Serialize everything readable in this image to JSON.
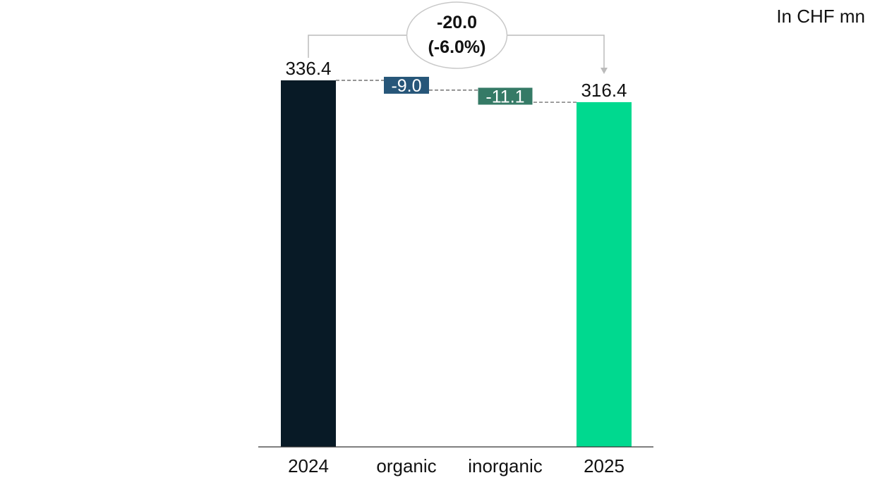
{
  "unit_label": "In CHF mn",
  "colors": {
    "start_bar": "#081a26",
    "organic": "#275679",
    "inorganic": "#357a66",
    "end_bar": "#00d98f",
    "connector": "#555555",
    "bracket": "#bbbbbb"
  },
  "chart_data": {
    "type": "bar",
    "subtype": "waterfall",
    "title": "",
    "xlabel": "",
    "ylabel": "",
    "grid": false,
    "categories": [
      "2024",
      "organic",
      "inorganic",
      "2025"
    ],
    "values": [
      336.4,
      -9.0,
      -11.1,
      316.4
    ],
    "kinds": [
      "total",
      "delta",
      "delta",
      "total"
    ],
    "data_labels": [
      "336.4",
      "-9.0",
      "-11.1",
      "316.4"
    ],
    "ylim": [
      0,
      336.4
    ],
    "annotation": {
      "from": "2024",
      "to": "2025",
      "line1": "-20.0",
      "line2": "(-6.0%)"
    }
  }
}
